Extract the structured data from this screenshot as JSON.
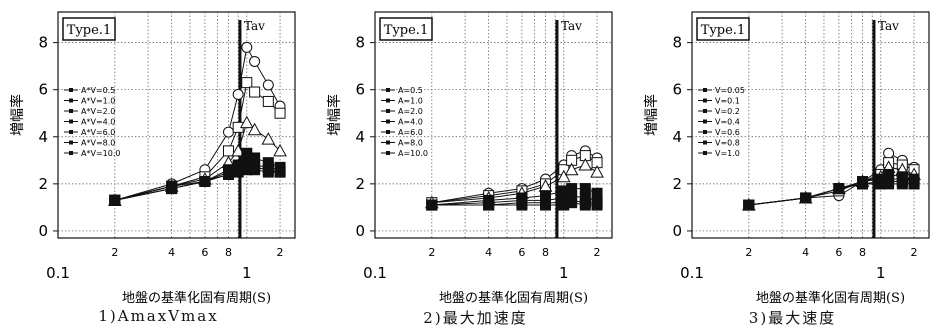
{
  "chart_data": [
    {
      "type": "line",
      "box_label": "Type.1",
      "marker_label": "Tav",
      "ylabel": "増幅率",
      "xlabel": "地盤の基準化固有周期(S)",
      "caption": "1)AmaxVmax",
      "x_scale": "log",
      "xlim": [
        0.1,
        1.8
      ],
      "ylim": [
        -0.3,
        9.3
      ],
      "y_ticks": [
        "0",
        "2",
        "4",
        "6",
        "8"
      ],
      "x_major_ticks": [
        "0.1",
        "1"
      ],
      "x_minor_ticks": [
        "2",
        "4",
        "6",
        "8",
        "2"
      ],
      "legend_position": "left-middle",
      "tav": 0.92,
      "grid": true,
      "series": [
        {
          "name": "A*V=0.5",
          "marker": "circle",
          "x": [
            0.2,
            0.4,
            0.6,
            0.8,
            0.9,
            1.0,
            1.1,
            1.3,
            1.5
          ],
          "y": [
            1.3,
            2.0,
            2.6,
            4.2,
            5.8,
            7.8,
            7.2,
            6.2,
            5.3
          ]
        },
        {
          "name": "A*V=1.0",
          "marker": "square",
          "x": [
            0.2,
            0.4,
            0.6,
            0.8,
            0.9,
            1.0,
            1.1,
            1.3,
            1.5
          ],
          "y": [
            1.3,
            1.9,
            2.3,
            3.4,
            4.4,
            6.3,
            5.9,
            5.5,
            5.0
          ]
        },
        {
          "name": "A*V=2.0",
          "marker": "triangle",
          "x": [
            0.2,
            0.4,
            0.6,
            0.8,
            0.9,
            1.0,
            1.1,
            1.3,
            1.5
          ],
          "y": [
            1.3,
            1.9,
            2.2,
            2.9,
            3.4,
            4.6,
            4.3,
            3.9,
            3.4
          ]
        },
        {
          "name": "A*V=4.0",
          "marker": "filled",
          "x": [
            0.2,
            0.4,
            0.6,
            0.8,
            0.9,
            1.0,
            1.1,
            1.3,
            1.5
          ],
          "y": [
            1.3,
            1.9,
            2.1,
            2.6,
            2.8,
            3.3,
            3.1,
            2.9,
            2.7
          ]
        },
        {
          "name": "A*V=6.0",
          "marker": "filled",
          "x": [
            0.2,
            0.4,
            0.6,
            0.8,
            0.9,
            1.0,
            1.1,
            1.3,
            1.5
          ],
          "y": [
            1.3,
            1.8,
            2.1,
            2.5,
            2.7,
            2.9,
            2.8,
            2.7,
            2.6
          ]
        },
        {
          "name": "A*V=8.0",
          "marker": "filled",
          "x": [
            0.2,
            0.4,
            0.6,
            0.8,
            0.9,
            1.0,
            1.1,
            1.3,
            1.5
          ],
          "y": [
            1.3,
            1.8,
            2.1,
            2.4,
            2.6,
            2.7,
            2.7,
            2.6,
            2.5
          ]
        },
        {
          "name": "A*V=10.0",
          "marker": "filled",
          "x": [
            0.2,
            0.4,
            0.6,
            0.8,
            0.9,
            1.0,
            1.1,
            1.3,
            1.5
          ],
          "y": [
            1.3,
            1.8,
            2.1,
            2.4,
            2.5,
            2.6,
            2.6,
            2.5,
            2.5
          ]
        }
      ]
    },
    {
      "type": "line",
      "box_label": "Type.1",
      "marker_label": "Tav",
      "ylabel": "増幅率",
      "xlabel": "地盤の基準化固有周期(S)",
      "caption": "2)最大加速度",
      "x_scale": "log",
      "xlim": [
        0.1,
        1.8
      ],
      "ylim": [
        -0.3,
        9.3
      ],
      "y_ticks": [
        "0",
        "2",
        "4",
        "6",
        "8"
      ],
      "x_major_ticks": [
        "0.1",
        "1"
      ],
      "x_minor_ticks": [
        "2",
        "4",
        "6",
        "8",
        "2"
      ],
      "legend_position": "left-middle",
      "tav": 0.92,
      "grid": true,
      "series": [
        {
          "name": "A=0.5",
          "marker": "circle",
          "x": [
            0.2,
            0.4,
            0.6,
            0.8,
            1.0,
            1.1,
            1.3,
            1.5
          ],
          "y": [
            1.2,
            1.6,
            1.8,
            2.2,
            2.8,
            3.2,
            3.4,
            3.1
          ]
        },
        {
          "name": "A=1.0",
          "marker": "square",
          "x": [
            0.2,
            0.4,
            0.6,
            0.8,
            1.0,
            1.1,
            1.3,
            1.5
          ],
          "y": [
            1.2,
            1.5,
            1.7,
            2.0,
            2.6,
            3.0,
            3.2,
            2.9
          ]
        },
        {
          "name": "A=2.0",
          "marker": "triangle",
          "x": [
            0.2,
            0.4,
            0.6,
            0.8,
            1.0,
            1.1,
            1.3,
            1.5
          ],
          "y": [
            1.2,
            1.4,
            1.6,
            1.9,
            2.3,
            2.6,
            2.8,
            2.5
          ]
        },
        {
          "name": "A=4.0",
          "marker": "filled",
          "x": [
            0.2,
            0.4,
            0.6,
            0.8,
            1.0,
            1.1,
            1.3,
            1.5
          ],
          "y": [
            1.1,
            1.3,
            1.4,
            1.5,
            1.7,
            1.8,
            1.8,
            1.6
          ]
        },
        {
          "name": "A=6.0",
          "marker": "filled",
          "x": [
            0.2,
            0.4,
            0.6,
            0.8,
            1.0,
            1.1,
            1.3,
            1.5
          ],
          "y": [
            1.1,
            1.2,
            1.3,
            1.3,
            1.4,
            1.5,
            1.4,
            1.3
          ]
        },
        {
          "name": "A=8.0",
          "marker": "filled",
          "x": [
            0.2,
            0.4,
            0.6,
            0.8,
            1.0,
            1.1,
            1.3,
            1.5
          ],
          "y": [
            1.1,
            1.1,
            1.2,
            1.2,
            1.2,
            1.3,
            1.2,
            1.2
          ]
        },
        {
          "name": "A=10.0",
          "marker": "filled",
          "x": [
            0.2,
            0.4,
            0.6,
            0.8,
            1.0,
            1.1,
            1.3,
            1.5
          ],
          "y": [
            1.1,
            1.1,
            1.1,
            1.1,
            1.1,
            1.2,
            1.1,
            1.1
          ]
        }
      ]
    },
    {
      "type": "line",
      "box_label": "Type.1",
      "marker_label": "Tav",
      "ylabel": "増幅率",
      "xlabel": "地盤の基準化固有周期(S)",
      "caption": "3)最大速度",
      "x_scale": "log",
      "xlim": [
        0.1,
        1.8
      ],
      "ylim": [
        -0.3,
        9.3
      ],
      "y_ticks": [
        "0",
        "2",
        "4",
        "6",
        "8"
      ],
      "x_major_ticks": [
        "0.1",
        "1"
      ],
      "x_minor_ticks": [
        "2",
        "4",
        "6",
        "8",
        "2"
      ],
      "legend_position": "left-middle",
      "tav": 0.92,
      "grid": true,
      "series": [
        {
          "name": "V=0.05",
          "marker": "circle",
          "x": [
            0.2,
            0.4,
            0.6,
            0.8,
            1.0,
            1.1,
            1.3,
            1.5
          ],
          "y": [
            1.1,
            1.4,
            1.5,
            2.1,
            2.6,
            3.3,
            3.0,
            2.7
          ]
        },
        {
          "name": "V=0.1",
          "marker": "square",
          "x": [
            0.2,
            0.4,
            0.6,
            0.8,
            1.0,
            1.1,
            1.3,
            1.5
          ],
          "y": [
            1.1,
            1.4,
            1.7,
            2.1,
            2.4,
            2.9,
            2.8,
            2.6
          ]
        },
        {
          "name": "V=0.2",
          "marker": "triangle",
          "x": [
            0.2,
            0.4,
            0.6,
            0.8,
            1.0,
            1.1,
            1.3,
            1.5
          ],
          "y": [
            1.1,
            1.4,
            1.8,
            2.1,
            2.3,
            2.7,
            2.6,
            2.4
          ]
        },
        {
          "name": "V=0.4",
          "marker": "filled",
          "x": [
            0.2,
            0.4,
            0.6,
            0.8,
            1.0,
            1.1,
            1.3,
            1.5
          ],
          "y": [
            1.1,
            1.4,
            1.8,
            2.1,
            2.2,
            2.4,
            2.3,
            2.2
          ]
        },
        {
          "name": "V=0.6",
          "marker": "filled",
          "x": [
            0.2,
            0.4,
            0.6,
            0.8,
            1.0,
            1.1,
            1.3,
            1.5
          ],
          "y": [
            1.1,
            1.4,
            1.8,
            2.0,
            2.1,
            2.2,
            2.2,
            2.1
          ]
        },
        {
          "name": "V=0.8",
          "marker": "filled",
          "x": [
            0.2,
            0.4,
            0.6,
            0.8,
            1.0,
            1.1,
            1.3,
            1.5
          ],
          "y": [
            1.1,
            1.4,
            1.8,
            2.0,
            2.0,
            2.1,
            2.1,
            2.0
          ]
        },
        {
          "name": "V=1.0",
          "marker": "filled",
          "x": [
            0.2,
            0.4,
            0.6,
            0.8,
            1.0,
            1.1,
            1.3,
            1.5
          ],
          "y": [
            1.1,
            1.4,
            1.8,
            2.0,
            2.0,
            2.0,
            2.0,
            2.0
          ]
        }
      ]
    }
  ]
}
